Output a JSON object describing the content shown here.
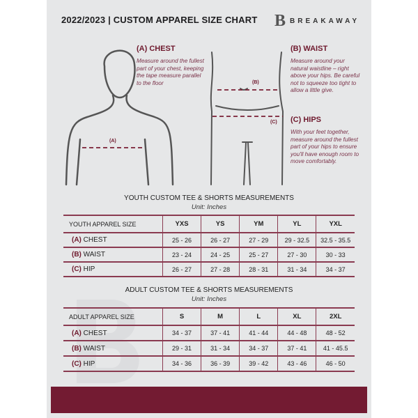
{
  "header": {
    "title": "2022/2023  |  CUSTOM APPAREL SIZE CHART",
    "brand": "BREAKAWAY",
    "brand_mark": "B"
  },
  "guide": {
    "chest": {
      "heading": "(A) CHEST",
      "text": "Measure around the fullest part of your chest, keeping the tape measure parallel to the floor",
      "marker": "(A)"
    },
    "waist": {
      "heading": "(B) WAIST",
      "text": "Measure around your natural waistline – right above your hips. Be careful not to squeeze too tight to allow a little give.",
      "marker": "(B)"
    },
    "hips": {
      "heading": "(C) HIPS",
      "text": "With your feet together, measure around the fullest part of your hips to ensure you'll have enough room to move comfortably.",
      "marker": "(C)"
    }
  },
  "youth": {
    "title": "YOUTH CUSTOM TEE & SHORTS MEASUREMENTS",
    "unit": "Unit: Inches",
    "header": [
      "YOUTH APPAREL SIZE",
      "YXS",
      "YS",
      "YM",
      "YL",
      "YXL"
    ],
    "rows": [
      {
        "code": "(A)",
        "label": "CHEST",
        "values": [
          "25 - 26",
          "26 - 27",
          "27 - 29",
          "29 - 32.5",
          "32.5 - 35.5"
        ]
      },
      {
        "code": "(B)",
        "label": "WAIST",
        "values": [
          "23 - 24",
          "24 - 25",
          "25 - 27",
          "27 - 30",
          "30 - 33"
        ]
      },
      {
        "code": "(C)",
        "label": "HIP",
        "values": [
          "26 - 27",
          "27 - 28",
          "28 - 31",
          "31 - 34",
          "34 - 37"
        ]
      }
    ]
  },
  "adult": {
    "title": "ADULT CUSTOM TEE & SHORTS MEASUREMENTS",
    "unit": "Unit: Inches",
    "header": [
      "ADULT APPAREL SIZE",
      "S",
      "M",
      "L",
      "XL",
      "2XL"
    ],
    "rows": [
      {
        "code": "(A)",
        "label": "CHEST",
        "values": [
          "34 - 37",
          "37 - 41",
          "41 - 44",
          "44 - 48",
          "48 - 52"
        ]
      },
      {
        "code": "(B)",
        "label": "WAIST",
        "values": [
          "29 - 31",
          "31 - 34",
          "34 - 37",
          "37 - 41",
          "41 - 45.5"
        ]
      },
      {
        "code": "(C)",
        "label": "HIP",
        "values": [
          "34 - 36",
          "36 - 39",
          "39 - 42",
          "43 - 46",
          "46 - 50"
        ]
      }
    ]
  },
  "colors": {
    "accent": "#731b32",
    "background": "#e6e7e8",
    "outline": "#555555"
  }
}
